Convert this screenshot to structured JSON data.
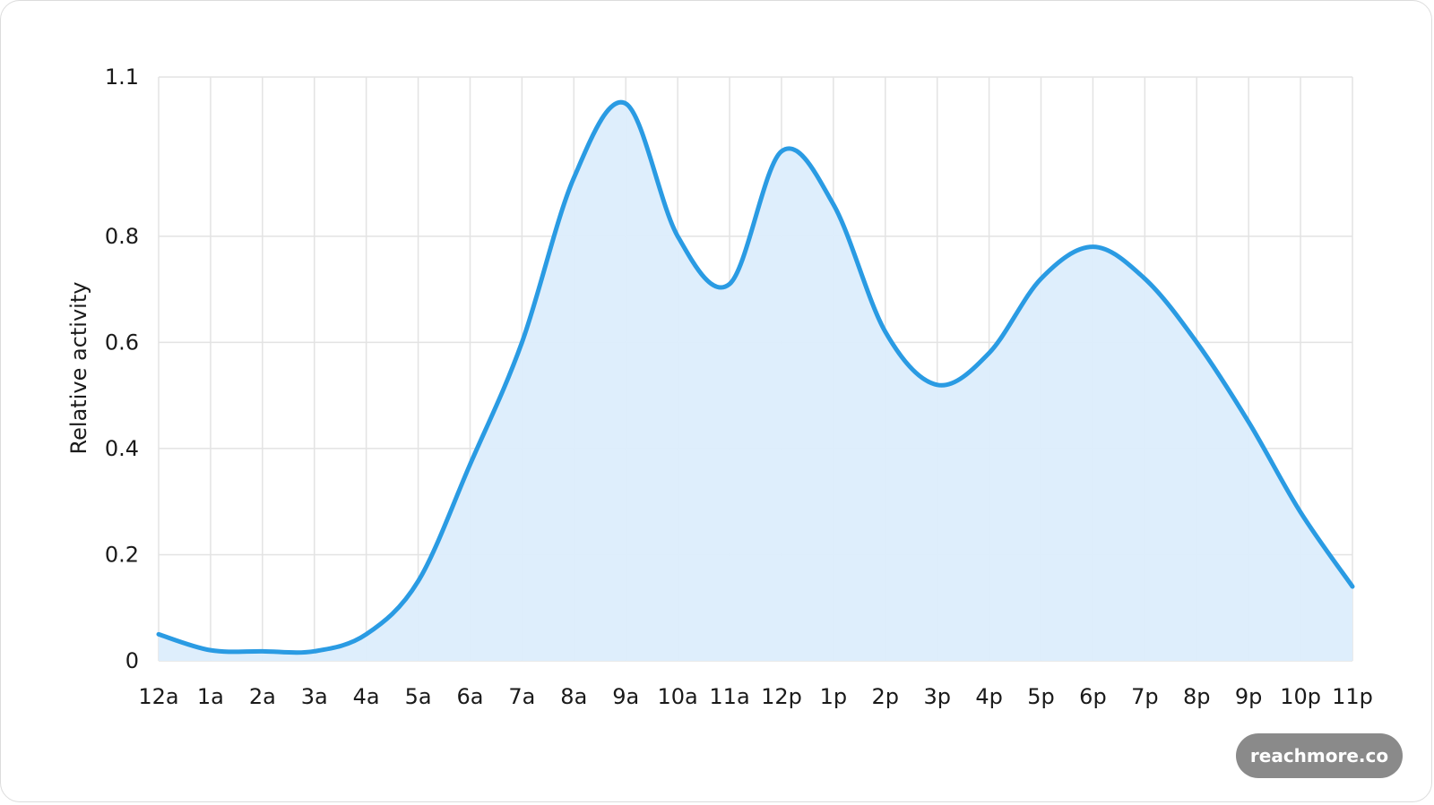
{
  "chart_data": {
    "type": "area",
    "title": "",
    "xlabel": "",
    "ylabel": "Relative activity",
    "categories": [
      "12a",
      "1a",
      "2a",
      "3a",
      "4a",
      "5a",
      "6a",
      "7a",
      "8a",
      "9a",
      "10a",
      "11a",
      "12p",
      "1p",
      "2p",
      "3p",
      "4p",
      "5p",
      "6p",
      "7p",
      "8p",
      "9p",
      "10p",
      "11p"
    ],
    "values": [
      0.05,
      0.02,
      0.018,
      0.018,
      0.05,
      0.15,
      0.37,
      0.6,
      0.91,
      1.05,
      0.8,
      0.71,
      0.96,
      0.86,
      0.62,
      0.52,
      0.58,
      0.72,
      0.78,
      0.72,
      0.6,
      0.45,
      0.28,
      0.14
    ],
    "yticks": [
      {
        "value": 0,
        "label": "0"
      },
      {
        "value": 0.2,
        "label": "0.2"
      },
      {
        "value": 0.4,
        "label": "0.4"
      },
      {
        "value": 0.6,
        "label": "0.6"
      },
      {
        "value": 0.8,
        "label": "0.8"
      },
      {
        "value": 1.1,
        "label": "1.1"
      }
    ],
    "ylim": [
      0,
      1.1
    ],
    "grid": true,
    "legend": "none",
    "line_color": "#2a9be3",
    "fill_color": "#dcedfc",
    "grid_color": "#e3e3e3"
  },
  "badge": {
    "text": "reachmore.co"
  }
}
